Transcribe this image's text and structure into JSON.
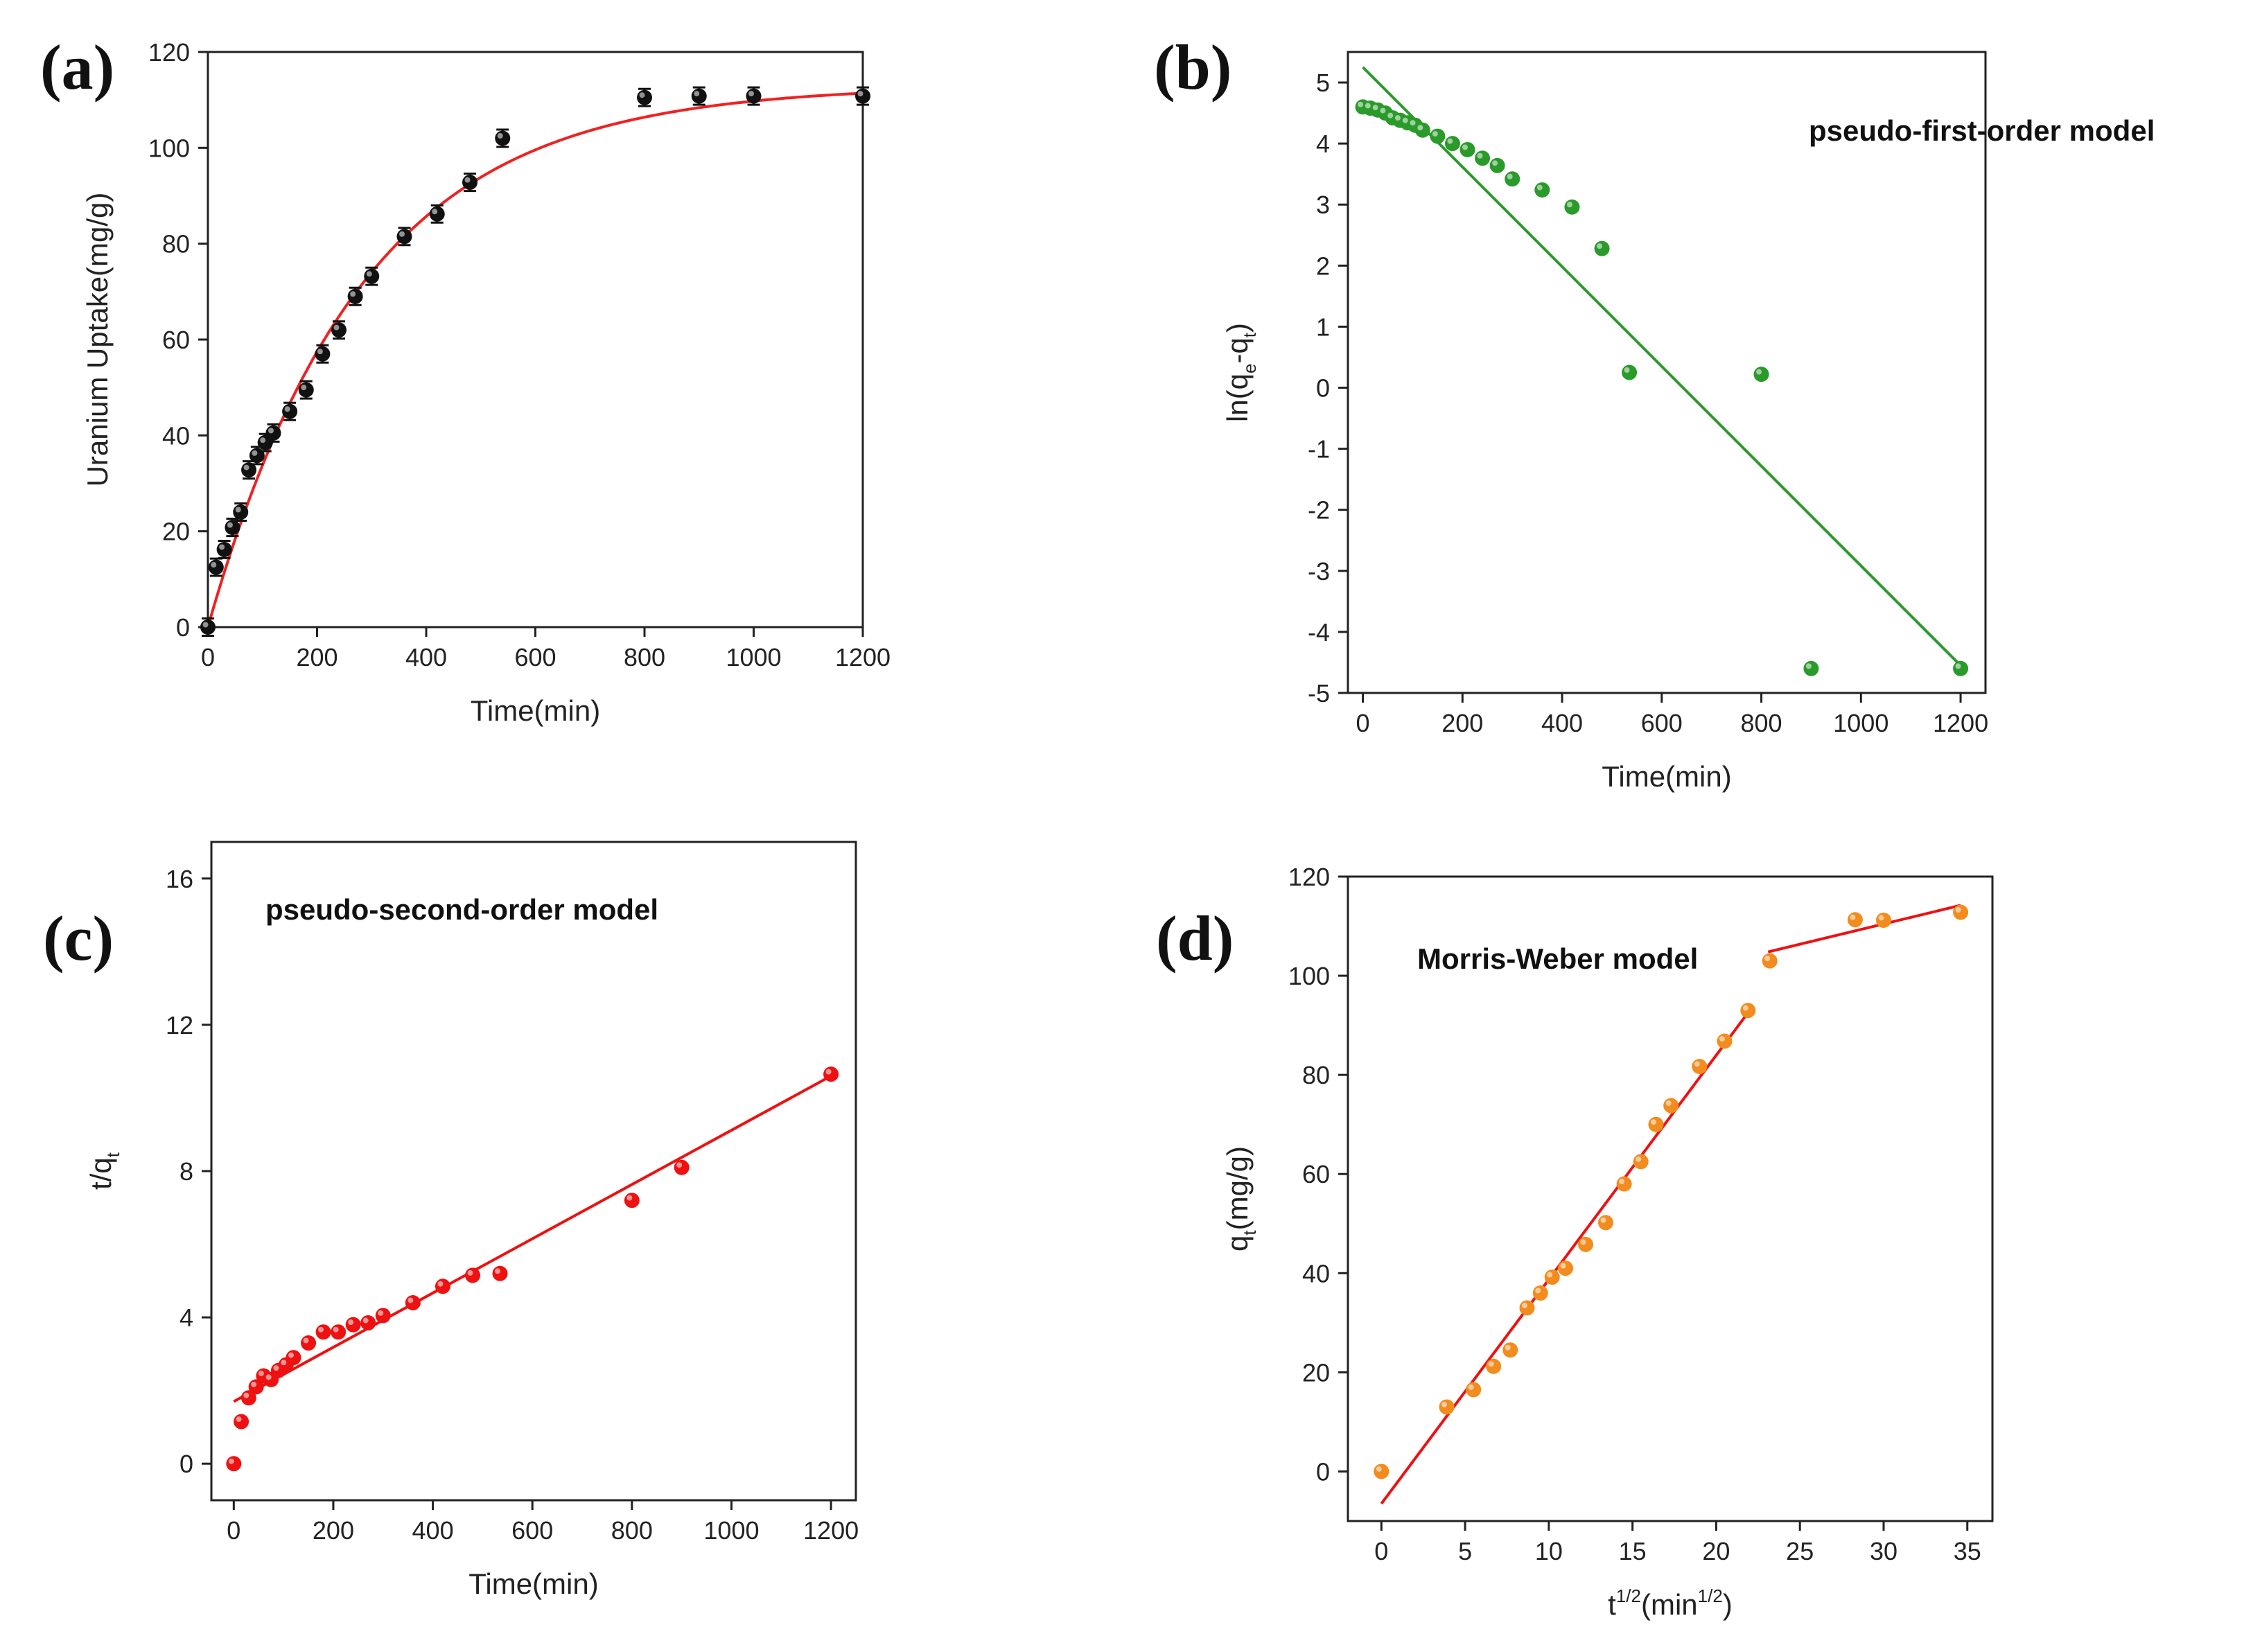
{
  "chart_data": [
    {
      "id": "a",
      "type": "scatter",
      "panel_label": "(a)",
      "xlabel": "Time(min)",
      "ylabel": "Uranium Uptake(mg/g)",
      "xlim": [
        0,
        1200
      ],
      "ylim": [
        0,
        120
      ],
      "xticks": [
        0,
        200,
        400,
        600,
        800,
        1000,
        1200
      ],
      "yticks": [
        0,
        20,
        40,
        60,
        80,
        100,
        120
      ],
      "annotation": "",
      "colors": {
        "points": "#111111",
        "fit": "#ee2222"
      },
      "error_bar": 1.8,
      "points": [
        [
          0,
          0
        ],
        [
          15,
          12.5
        ],
        [
          30,
          16.2
        ],
        [
          45,
          20.8
        ],
        [
          60,
          24
        ],
        [
          75,
          32.8
        ],
        [
          90,
          35.8
        ],
        [
          105,
          38.5
        ],
        [
          120,
          40.5
        ],
        [
          150,
          45
        ],
        [
          180,
          49.5
        ],
        [
          210,
          57
        ],
        [
          240,
          62
        ],
        [
          270,
          69
        ],
        [
          300,
          73.2
        ],
        [
          360,
          81.5
        ],
        [
          420,
          86.2
        ],
        [
          480,
          92.8
        ],
        [
          540,
          102
        ],
        [
          800,
          110.5
        ],
        [
          900,
          110.8
        ],
        [
          1000,
          110.8
        ],
        [
          1200,
          110.8
        ]
      ],
      "fit_model": {
        "type": "exp_saturation",
        "qe": 113,
        "k": 0.00355
      }
    },
    {
      "id": "b",
      "type": "scatter",
      "panel_label": "(b)",
      "xlabel": "Time(min)",
      "ylabel": "ln(q",
      "ylabel_sub1": "e",
      "ylabel_mid": "-q",
      "ylabel_sub2": "t",
      "ylabel_end": ")",
      "xlim": [
        -30,
        1250
      ],
      "ylim": [
        -5,
        5.5
      ],
      "xticks": [
        0,
        200,
        400,
        600,
        800,
        1000,
        1200
      ],
      "yticks": [
        -5,
        -4,
        -3,
        -2,
        -1,
        0,
        1,
        2,
        3,
        4,
        5
      ],
      "annotation": "pseudo-first-order model",
      "colors": {
        "points": "#2a9a2a",
        "fit": "#2a9a2a"
      },
      "points": [
        [
          0,
          4.6
        ],
        [
          15,
          4.58
        ],
        [
          30,
          4.55
        ],
        [
          45,
          4.5
        ],
        [
          60,
          4.42
        ],
        [
          75,
          4.38
        ],
        [
          90,
          4.34
        ],
        [
          105,
          4.3
        ],
        [
          120,
          4.22
        ],
        [
          150,
          4.12
        ],
        [
          180,
          4.0
        ],
        [
          210,
          3.9
        ],
        [
          240,
          3.76
        ],
        [
          270,
          3.64
        ],
        [
          300,
          3.42
        ],
        [
          360,
          3.24
        ],
        [
          420,
          2.96
        ],
        [
          480,
          2.28
        ],
        [
          535,
          0.25
        ],
        [
          800,
          0.22
        ],
        [
          900,
          -4.6
        ],
        [
          1200,
          -4.6
        ]
      ],
      "fit_segments": [
        [
          [
            0,
            5.25
          ],
          [
            1200,
            -4.55
          ]
        ]
      ]
    },
    {
      "id": "c",
      "type": "scatter",
      "panel_label": "(c)",
      "xlabel": "Time(min)",
      "ylabel": "t/q",
      "ylabel_sub1": "t",
      "xlim": [
        -45,
        1250
      ],
      "ylim": [
        -1,
        17
      ],
      "xticks": [
        0,
        200,
        400,
        600,
        800,
        1000,
        1200
      ],
      "yticks": [
        0,
        4,
        8,
        12,
        16
      ],
      "annotation": "pseudo-second-order model",
      "colors": {
        "points": "#ee1111",
        "fit": "#ee1111"
      },
      "points": [
        [
          0,
          0
        ],
        [
          15,
          1.15
        ],
        [
          30,
          1.8
        ],
        [
          45,
          2.1
        ],
        [
          60,
          2.4
        ],
        [
          75,
          2.3
        ],
        [
          90,
          2.55
        ],
        [
          105,
          2.7
        ],
        [
          120,
          2.9
        ],
        [
          150,
          3.3
        ],
        [
          180,
          3.6
        ],
        [
          210,
          3.6
        ],
        [
          240,
          3.8
        ],
        [
          270,
          3.85
        ],
        [
          300,
          4.05
        ],
        [
          360,
          4.4
        ],
        [
          420,
          4.85
        ],
        [
          480,
          5.15
        ],
        [
          535,
          5.2
        ],
        [
          800,
          7.2
        ],
        [
          900,
          8.1
        ],
        [
          1200,
          10.65
        ]
      ],
      "fit_segments": [
        [
          [
            0,
            1.7
          ],
          [
            1200,
            10.6
          ]
        ]
      ]
    },
    {
      "id": "d",
      "type": "scatter",
      "panel_label": "(d)",
      "xlabel": "t",
      "xlabel_sup1": "1/2",
      "xlabel_mid": "(min",
      "xlabel_sup2": "1/2",
      "xlabel_end": ")",
      "ylabel": "q",
      "ylabel_sub1": "t",
      "ylabel_end": "(mg/g)",
      "xlim": [
        -2,
        36.5
      ],
      "ylim": [
        -10,
        120
      ],
      "xticks": [
        0,
        5,
        10,
        15,
        20,
        25,
        30,
        35
      ],
      "yticks": [
        0,
        20,
        40,
        60,
        80,
        100,
        120
      ],
      "annotation": "Morris-Weber model",
      "colors": {
        "points": "#f28c1e",
        "fit": "#ee1111"
      },
      "points": [
        [
          0,
          0
        ],
        [
          3.9,
          13
        ],
        [
          5.5,
          16.5
        ],
        [
          6.7,
          21.2
        ],
        [
          7.7,
          24.5
        ],
        [
          8.7,
          33
        ],
        [
          9.5,
          36
        ],
        [
          10.2,
          39.2
        ],
        [
          11,
          41
        ],
        [
          12.2,
          45.8
        ],
        [
          13.4,
          50.2
        ],
        [
          14.5,
          58
        ],
        [
          15.5,
          62.5
        ],
        [
          16.4,
          70
        ],
        [
          17.3,
          73.8
        ],
        [
          19,
          81.7
        ],
        [
          20.5,
          86.8
        ],
        [
          21.9,
          93
        ],
        [
          23.2,
          103
        ],
        [
          28.3,
          111.3
        ],
        [
          30,
          111.2
        ],
        [
          34.6,
          112.8
        ]
      ],
      "fit_segments": [
        [
          [
            0,
            -6.5
          ],
          [
            22,
            93
          ]
        ],
        [
          [
            23.1,
            104.8
          ],
          [
            34.6,
            114.2
          ]
        ]
      ]
    }
  ]
}
